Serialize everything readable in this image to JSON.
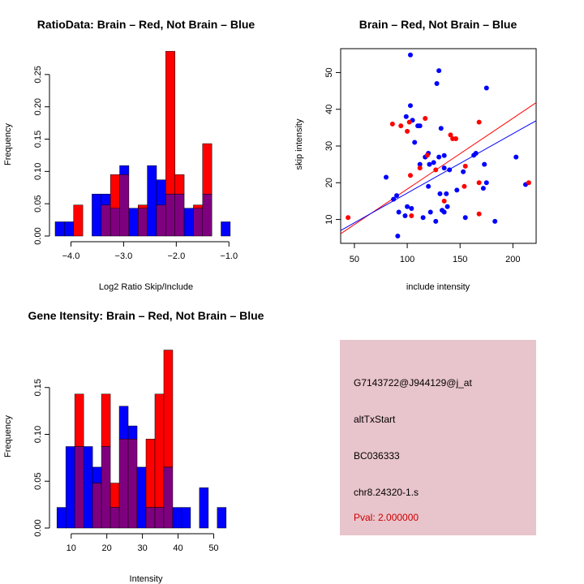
{
  "colors": {
    "red": "#ff0000",
    "blue": "#0000ff",
    "purple": "#7f007f",
    "panel": "#e8c4cc"
  },
  "chart_data": [
    {
      "type": "bar",
      "title": "RatioData: Brain – Red, Not Brain – Blue",
      "xlabel": "Log2 Ratio Skip/Include",
      "ylabel": "Frequency",
      "xlim": [
        -4.3,
        -0.85
      ],
      "ylim": [
        0,
        0.29
      ],
      "xticks": [
        -4.0,
        -3.0,
        -2.0,
        -1.0
      ],
      "xtick_labels": [
        "−4.0",
        "−3.0",
        "−2.0",
        "−1.0"
      ],
      "yticks": [
        0,
        0.05,
        0.1,
        0.15,
        0.2,
        0.25
      ],
      "ytick_labels": [
        "0.00",
        "0.05",
        "0.10",
        "0.15",
        "0.20",
        "0.25"
      ],
      "bin_edges": [
        -4.3,
        -4.125,
        -3.95,
        -3.775,
        -3.6,
        -3.425,
        -3.25,
        -3.075,
        -2.9,
        -2.725,
        -2.55,
        -2.375,
        -2.2,
        -2.025,
        -1.85,
        -1.675,
        -1.5,
        -1.325,
        -1.15,
        -0.975
      ],
      "series": [
        {
          "name": "Not Brain",
          "color": "blue",
          "values": [
            0.022,
            0.022,
            0.0,
            0.0,
            0.065,
            0.065,
            0.043,
            0.109,
            0.043,
            0.043,
            0.109,
            0.087,
            0.065,
            0.065,
            0.043,
            0.043,
            0.065,
            0.0,
            0.022
          ]
        },
        {
          "name": "Brain",
          "color": "red",
          "values": [
            0.0,
            0.0,
            0.048,
            0.0,
            0.0,
            0.048,
            0.095,
            0.095,
            0.0,
            0.048,
            0.0,
            0.048,
            0.286,
            0.095,
            0.0,
            0.048,
            0.143,
            0.0,
            0.0
          ]
        }
      ]
    },
    {
      "type": "scatter",
      "title": "Brain – Red, Not Brain – Blue",
      "xlabel": "include intensity",
      "ylabel": "skip intensity",
      "xlim": [
        37,
        222
      ],
      "ylim": [
        3.5,
        56.5
      ],
      "xticks": [
        50,
        100,
        150,
        200
      ],
      "xtick_labels": [
        "50",
        "100",
        "150",
        "200"
      ],
      "yticks": [
        10,
        20,
        30,
        40,
        50
      ],
      "ytick_labels": [
        "10",
        "20",
        "30",
        "40",
        "50"
      ],
      "series": [
        {
          "name": "Not Brain",
          "color": "blue",
          "points": [
            [
              103,
              54.8
            ],
            [
              130,
              50.5
            ],
            [
              128,
              47
            ],
            [
              175,
              45.8
            ],
            [
              103,
              41
            ],
            [
              99,
              38
            ],
            [
              105,
              37
            ],
            [
              110,
              35.5
            ],
            [
              112,
              35.5
            ],
            [
              132,
              34.8
            ],
            [
              107,
              31
            ],
            [
              163,
              27.5
            ],
            [
              165,
              28
            ],
            [
              203,
              27
            ],
            [
              135,
              27.4
            ],
            [
              130,
              27
            ],
            [
              117,
              27
            ],
            [
              121,
              25
            ],
            [
              120,
              28
            ],
            [
              125,
              25.5
            ],
            [
              112,
              25
            ],
            [
              173,
              25
            ],
            [
              140,
              23.5
            ],
            [
              135,
              24
            ],
            [
              153,
              23
            ],
            [
              80,
              21.5
            ],
            [
              175,
              20
            ],
            [
              120,
              19
            ],
            [
              147,
              18
            ],
            [
              172,
              18.5
            ],
            [
              90,
              16.5
            ],
            [
              131,
              17
            ],
            [
              137,
              17
            ],
            [
              104,
              13
            ],
            [
              100,
              13.5
            ],
            [
              92,
              12
            ],
            [
              122,
              12
            ],
            [
              133,
              12.5
            ],
            [
              138,
              13.5
            ],
            [
              115,
              10.5
            ],
            [
              127,
              9.5
            ],
            [
              98,
              11
            ],
            [
              135,
              12
            ],
            [
              155,
              10.5
            ],
            [
              183,
              9.5
            ],
            [
              212,
              19.5
            ],
            [
              91,
              5.5
            ],
            [
              87,
              15.5
            ]
          ]
        },
        {
          "name": "Brain",
          "color": "red",
          "points": [
            [
              86,
              36
            ],
            [
              94,
              35.5
            ],
            [
              100,
              34
            ],
            [
              102,
              36.5
            ],
            [
              117,
              37.5
            ],
            [
              143,
              32
            ],
            [
              141,
              33
            ],
            [
              146,
              32
            ],
            [
              168,
              36.5
            ],
            [
              112,
              24
            ],
            [
              119,
              27.5
            ],
            [
              103,
              22
            ],
            [
              127,
              23.5
            ],
            [
              155,
              24.5
            ],
            [
              168,
              20
            ],
            [
              135,
              15
            ],
            [
              154,
              19
            ],
            [
              168,
              11.5
            ],
            [
              104,
              11
            ],
            [
              44,
              10.5
            ],
            [
              215,
              20
            ]
          ]
        }
      ],
      "lines": [
        {
          "name": "Brain fit",
          "color": "red",
          "x": [
            37,
            222
          ],
          "y": [
            6.1,
            41.8
          ]
        },
        {
          "name": "Not Brain fit",
          "color": "blue",
          "x": [
            37,
            222
          ],
          "y": [
            7.0,
            36.9
          ]
        }
      ]
    },
    {
      "type": "bar",
      "title": "Gene Itensity: Brain – Red, Not Brain – Blue",
      "xlabel": "Intensity",
      "ylabel": "Frequency",
      "xlim": [
        5.5,
        56.5
      ],
      "ylim": [
        0,
        0.2
      ],
      "xticks": [
        10,
        20,
        30,
        40,
        50
      ],
      "xtick_labels": [
        "10",
        "20",
        "30",
        "40",
        "50"
      ],
      "yticks": [
        0,
        0.05,
        0.1,
        0.15
      ],
      "ytick_labels": [
        "0.00",
        "0.05",
        "0.10",
        "0.15"
      ],
      "bin_edges": [
        6,
        8.5,
        11,
        13.5,
        16,
        18.5,
        21,
        23.5,
        26,
        28.5,
        31,
        33.5,
        36,
        38.5,
        41,
        43.5,
        46,
        48.5,
        51,
        53.5
      ],
      "series": [
        {
          "name": "Not Brain",
          "color": "blue",
          "values": [
            0.022,
            0.087,
            0.087,
            0.087,
            0.065,
            0.087,
            0.022,
            0.13,
            0.109,
            0.065,
            0.022,
            0.022,
            0.065,
            0.022,
            0.022,
            0.0,
            0.043,
            0.0,
            0.022
          ]
        },
        {
          "name": "Brain",
          "color": "red",
          "values": [
            0.0,
            0.0,
            0.143,
            0.0,
            0.048,
            0.143,
            0.048,
            0.095,
            0.095,
            0.0,
            0.095,
            0.143,
            0.19,
            0.0,
            0.0,
            0.0,
            0.0,
            0.0,
            0.0
          ]
        }
      ]
    }
  ],
  "info_panel": {
    "probe_id": "G7143722@J944129@j_at",
    "event_type": "altTxStart",
    "accession": "BC036333",
    "location": "chr8.24320-1.s",
    "pval": "Pval: 2.000000"
  }
}
